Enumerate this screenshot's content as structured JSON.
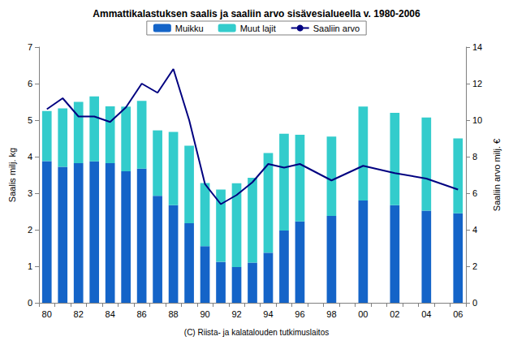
{
  "chart_data": {
    "type": "bar",
    "title": "Ammattikalastuksen saalis ja saaliin arvo sisävesialueella v. 1980-2006",
    "annotation": "(C) Riista- ja kalatalouden tutkimuslaitos",
    "y_label": "Saalis milj. kg",
    "y2_label": "Saaliin arvo milj. €",
    "categories": [
      "80",
      null,
      "82",
      null,
      "84",
      null,
      "86",
      null,
      "88",
      null,
      "90",
      null,
      "92",
      null,
      "94",
      null,
      "96",
      null,
      "98",
      null,
      "00",
      null,
      "02",
      null,
      "04",
      null,
      "06"
    ],
    "series": [
      {
        "name": "Muikku",
        "color": "#1464c8",
        "type": "bar",
        "values": [
          3.88,
          3.72,
          3.82,
          3.87,
          3.82,
          3.6,
          3.67,
          2.93,
          2.67,
          2.18,
          1.55,
          1.12,
          0.98,
          1.1,
          1.37,
          1.98,
          2.23,
          null,
          2.38,
          null,
          2.8,
          null,
          2.67,
          null,
          2.52,
          null,
          2.45
        ]
      },
      {
        "name": "Muut lajit",
        "color": "#33cccc",
        "type": "bar",
        "values": [
          1.37,
          1.6,
          1.68,
          1.78,
          1.56,
          1.77,
          1.86,
          1.79,
          2.01,
          2.12,
          1.73,
          1.98,
          2.29,
          2.32,
          2.73,
          2.65,
          2.37,
          null,
          2.17,
          null,
          2.57,
          null,
          2.53,
          null,
          2.55,
          null,
          2.05
        ]
      },
      {
        "name": "Saaliin arvo",
        "color": "#000080",
        "type": "line",
        "axis": "y2",
        "values": [
          10.6,
          11.2,
          10.2,
          10.2,
          9.9,
          10.7,
          12.0,
          11.5,
          12.8,
          10.0,
          6.5,
          5.4,
          5.9,
          6.6,
          7.6,
          7.4,
          7.6,
          null,
          6.7,
          null,
          7.5,
          null,
          7.1,
          null,
          6.8,
          null,
          6.2
        ]
      }
    ],
    "ylim": [
      0,
      7
    ],
    "yticks": [
      0,
      1,
      2,
      3,
      4,
      5,
      6,
      7
    ],
    "y2lim": [
      0,
      14
    ],
    "y2ticks": [
      0,
      2,
      4,
      6,
      8,
      10,
      12,
      14
    ],
    "stacked": true,
    "grid": false,
    "legend": "top"
  }
}
